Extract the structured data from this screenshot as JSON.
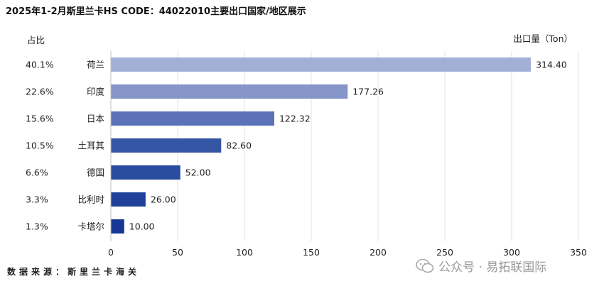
{
  "title": "2025年1-2月斯里兰卡HS CODE：44022010主要出口国家/地区展示",
  "share_header": "占比",
  "unit_label": "出口量（Ton）",
  "source": "数据来源：斯里兰卡海关",
  "watermark": "公众号 · 易拓联国际",
  "chart_data": {
    "type": "bar",
    "orientation": "horizontal",
    "categories": [
      "荷兰",
      "印度",
      "日本",
      "土耳其",
      "德国",
      "比利时",
      "卡塔尔"
    ],
    "values": [
      314.4,
      177.26,
      122.32,
      82.6,
      52.0,
      26.0,
      10.0
    ],
    "value_labels": [
      "314.40",
      "177.26",
      "122.32",
      "82.60",
      "52.00",
      "26.00",
      "10.00"
    ],
    "shares": [
      "40.1%",
      "22.6%",
      "15.6%",
      "10.5%",
      "6.6%",
      "3.3%",
      "1.3%"
    ],
    "xlim": [
      0,
      350
    ],
    "xticks": [
      0,
      50,
      100,
      150,
      200,
      250,
      300,
      350
    ],
    "grid": true,
    "colors": [
      "#a3b0d6",
      "#8595c8",
      "#5b72b8",
      "#3556a5",
      "#2a4c9f",
      "#1f419a",
      "#163795"
    ]
  }
}
